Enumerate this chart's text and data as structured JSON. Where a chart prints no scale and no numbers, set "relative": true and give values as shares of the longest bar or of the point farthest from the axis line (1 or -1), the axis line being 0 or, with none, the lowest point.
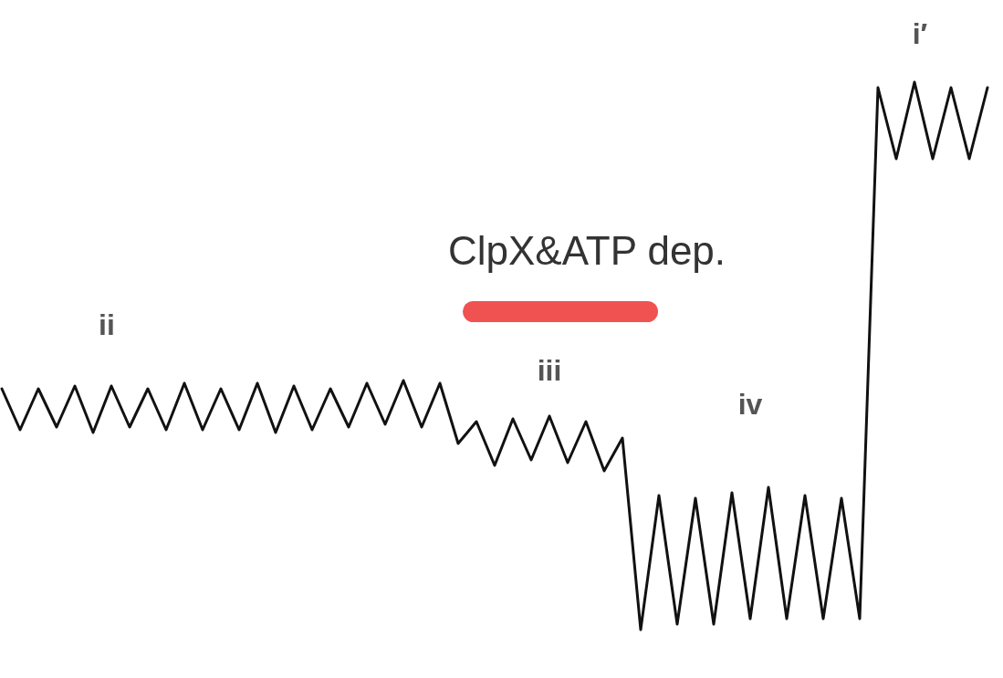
{
  "chart_data": {
    "type": "line",
    "relative": true,
    "categories": [
      null,
      null,
      null,
      null,
      null,
      null,
      null,
      null,
      null,
      null,
      null,
      null,
      null,
      null,
      null,
      null,
      null,
      null,
      null,
      null,
      null,
      null,
      null,
      null,
      null,
      null,
      null,
      null,
      null,
      null,
      null,
      null,
      null,
      null,
      null,
      null,
      null,
      null,
      null,
      null,
      null,
      null,
      null,
      null,
      null,
      null,
      null,
      null,
      null,
      null,
      null,
      null,
      null,
      null,
      null
    ],
    "series": [
      {
        "color": "#111111",
        "values": [
          0.44,
          0.365,
          0.44,
          0.37,
          0.445,
          0.36,
          0.445,
          0.37,
          0.44,
          0.365,
          0.45,
          0.365,
          0.44,
          0.365,
          0.45,
          0.36,
          0.445,
          0.365,
          0.44,
          0.37,
          0.45,
          0.375,
          0.455,
          0.37,
          0.45,
          0.34,
          0.38,
          0.3,
          0.385,
          0.31,
          0.39,
          0.305,
          0.38,
          0.29,
          0.35,
          0.0,
          0.245,
          0.01,
          0.24,
          0.01,
          0.25,
          0.02,
          0.26,
          0.02,
          0.245,
          0.02,
          0.24,
          0.02,
          0.99,
          0.86,
          1,
          0.86,
          0.99,
          0.86,
          0.99
        ]
      }
    ],
    "annotations": [
      "ClpX&ATP dep.",
      "ii",
      "iii",
      "iv",
      "i′"
    ]
  }
}
